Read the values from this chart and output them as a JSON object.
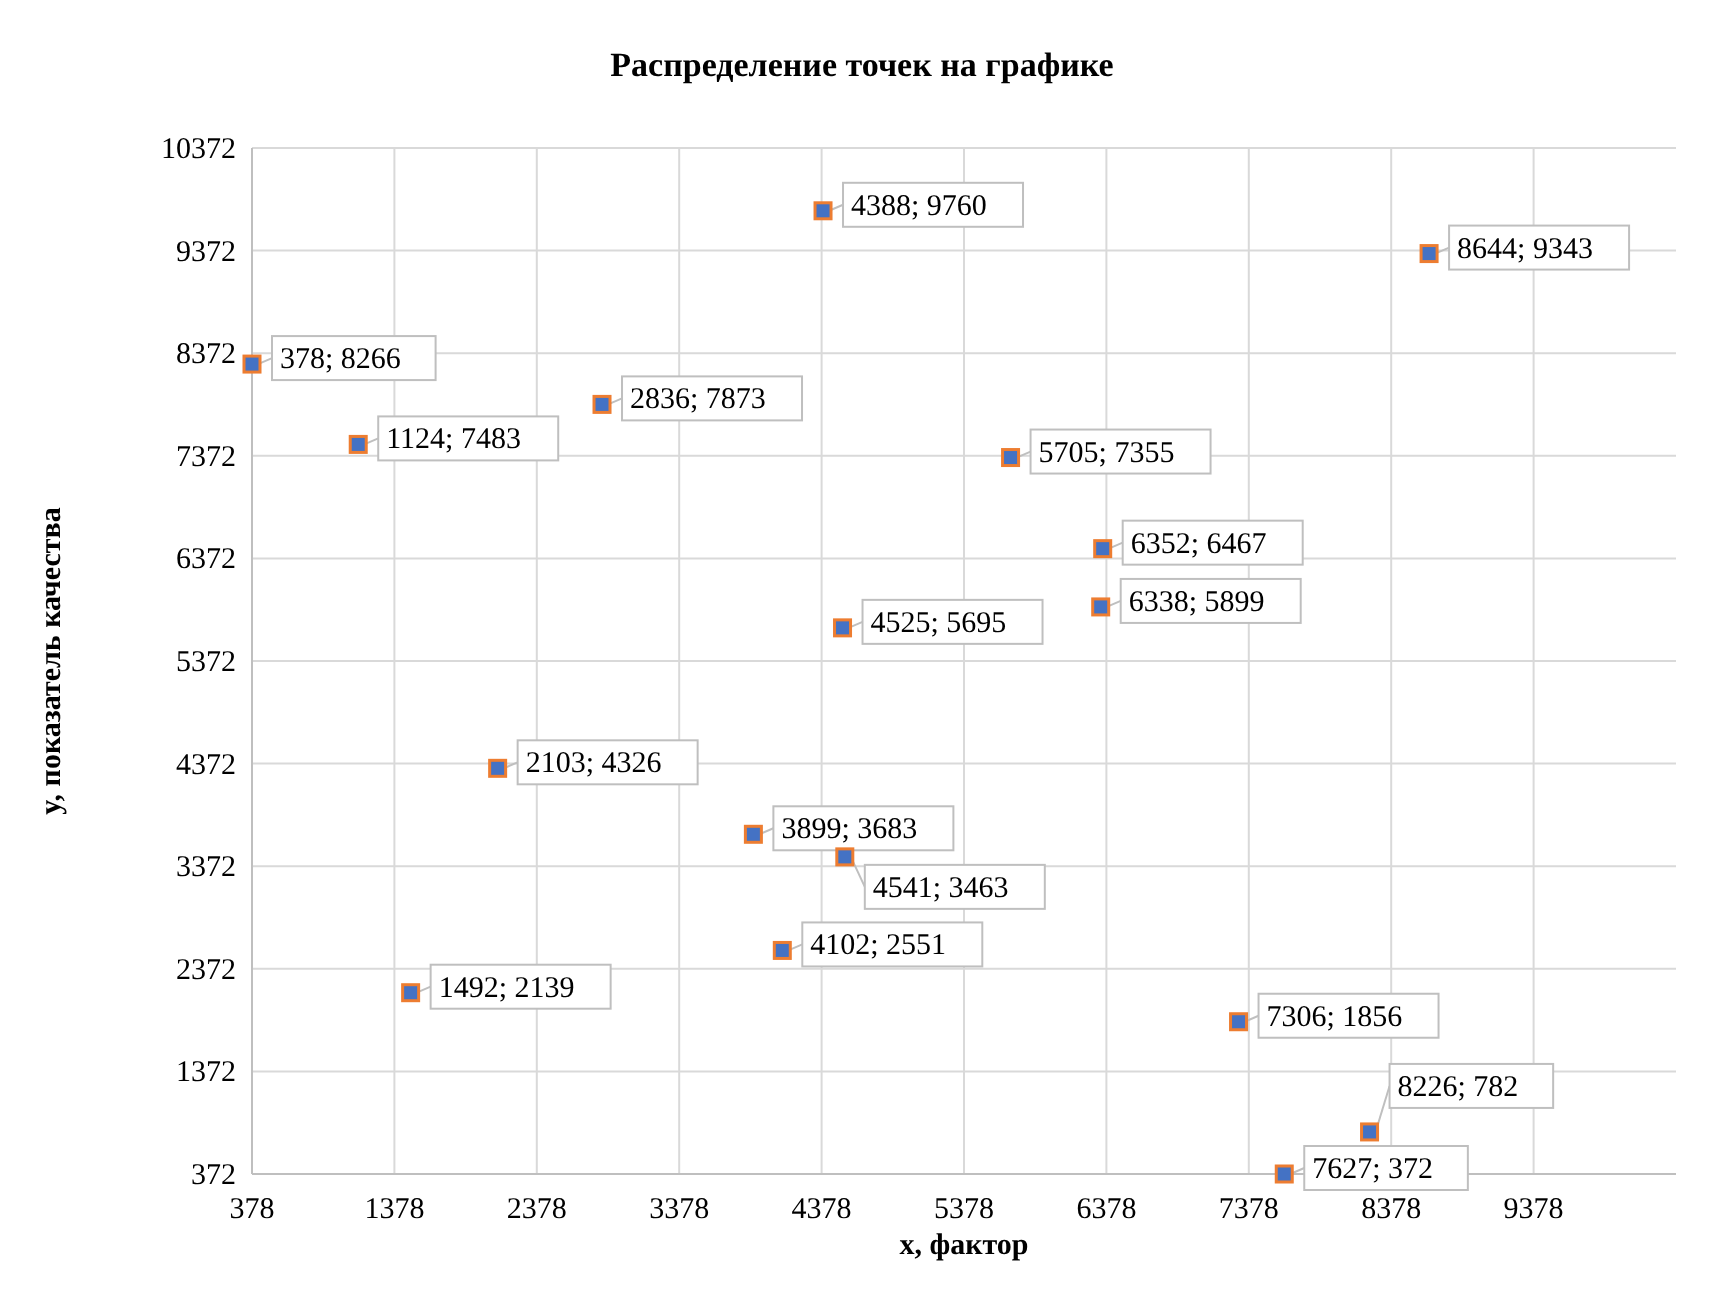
{
  "chart_data": {
    "type": "scatter",
    "title": "Распределение точек на графике",
    "xlabel": "x, фактор",
    "ylabel": "y, показатель качества",
    "xlim": [
      378,
      10378
    ],
    "xticks": [
      378,
      1378,
      2378,
      3378,
      4378,
      5378,
      6378,
      7378,
      8378,
      9378
    ],
    "ylim": [
      372,
      10372
    ],
    "yticks": [
      372,
      1372,
      2372,
      3372,
      4372,
      5372,
      6372,
      7372,
      8372,
      9372,
      10372
    ],
    "grid": true,
    "marker": "square",
    "series": [
      {
        "color": "#4472c4",
        "x": [
          378,
          1124,
          1492,
          2103,
          2836,
          3899,
          4102,
          4388,
          4525,
          4541,
          5705,
          6338,
          6352,
          7306,
          7627,
          8226,
          8644
        ],
        "values": [
          8266,
          7483,
          2139,
          4326,
          7873,
          3683,
          2551,
          9760,
          5695,
          3463,
          7355,
          5899,
          6467,
          1856,
          372,
          782,
          9343
        ],
        "value_labels": [
          "378; 8266",
          "1124; 7483",
          "1492; 2139",
          "2103; 4326",
          "2836; 7873",
          "3899; 3683",
          "4102; 2551",
          "4388; 9760",
          "4525; 5695",
          "4541; 3463",
          "5705; 7355",
          "6338; 5899",
          "6352; 6467",
          "7306; 1856",
          "7627; 372",
          "8226; 782",
          "8644; 9343"
        ]
      }
    ]
  }
}
